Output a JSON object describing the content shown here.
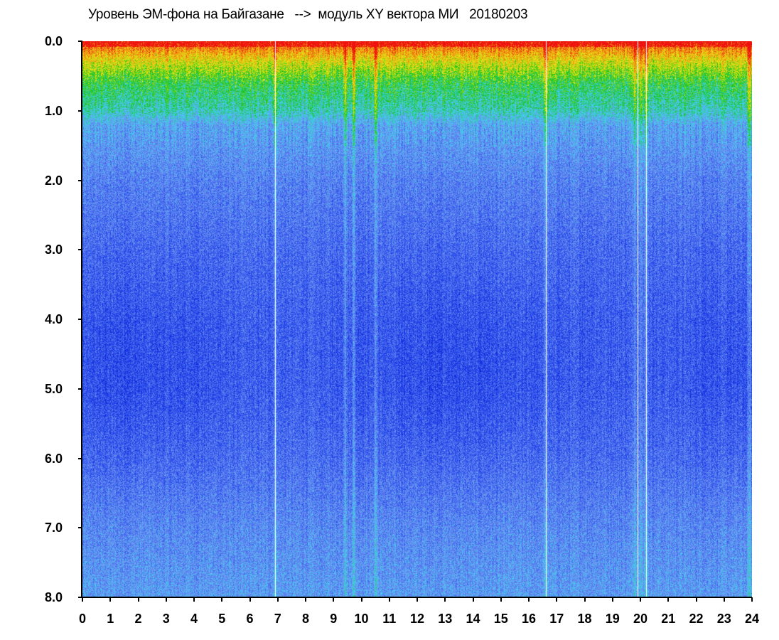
{
  "chart_data": {
    "type": "heatmap",
    "title": "Уровень ЭМ-фона на Байгазане   -->  модуль XY вектора МИ   20180203",
    "xlabel": "",
    "ylabel": "",
    "xlim": [
      0,
      24
    ],
    "ylim": [
      8,
      0
    ],
    "y_inverted": true,
    "x_tick_labels": [
      "0",
      "1",
      "2",
      "3",
      "4",
      "5",
      "6",
      "7",
      "8",
      "9",
      "10",
      "11",
      "12",
      "13",
      "14",
      "15",
      "16",
      "17",
      "18",
      "19",
      "20",
      "21",
      "22",
      "23",
      "24"
    ],
    "y_tick_labels": [
      "0.0",
      "1.0",
      "2.0",
      "3.0",
      "4.0",
      "5.0",
      "6.0",
      "7.0",
      "8.0"
    ],
    "colormap": [
      "#0b1bd6",
      "#2f55ee",
      "#6f8ff0",
      "#3fd3f0",
      "#17c217",
      "#e8e817",
      "#f09a10",
      "#ee1010"
    ],
    "intensity_profile": {
      "y": [
        0.0,
        0.3,
        0.6,
        1.0,
        1.2,
        2.0,
        3.0,
        4.0,
        5.0,
        6.0,
        7.0,
        8.0
      ],
      "level": [
        0.95,
        0.72,
        0.55,
        0.45,
        0.33,
        0.25,
        0.2,
        0.18,
        0.18,
        0.21,
        0.27,
        0.31
      ]
    },
    "bright_columns_hours": [
      6.9,
      9.4,
      9.7,
      10.5,
      16.6,
      19.8,
      20.0,
      20.2,
      23.9
    ],
    "gap_columns_hours": [
      6.9,
      16.6,
      19.9,
      20.2
    ]
  }
}
